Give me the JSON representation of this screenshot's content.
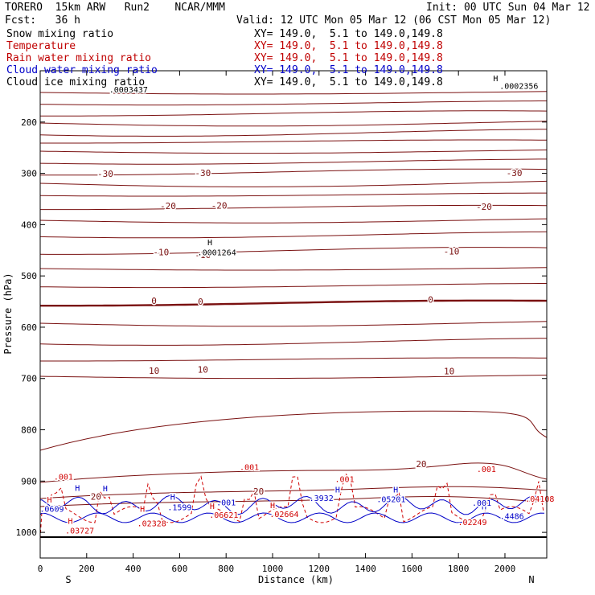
{
  "header": {
    "model": "TORERO  15km ARW   Run2    NCAR/MMM",
    "init": "Init: 00 UTC Sun 04 Mar 12",
    "fcst": "Fcst:   36 h",
    "valid": "Valid: 12 UTC Mon 05 Mar 12 (06 CST Mon 05 Mar 12)"
  },
  "legend": [
    {
      "label": "Snow mixing ratio",
      "xy": "XY= 149.0,  5.1 to 149.0,149.8",
      "color": "#000000"
    },
    {
      "label": "Temperature",
      "xy": "XY= 149.0,  5.1 to 149.0,149.8",
      "color": "#c00000"
    },
    {
      "label": "Rain water mixing ratio",
      "xy": "XY= 149.0,  5.1 to 149.0,149.8",
      "color": "#c00000"
    },
    {
      "label": "Cloud water mixing ratio",
      "xy": "XY= 149.0,  5.1 to 149.0,149.8",
      "color": "#0000c8"
    },
    {
      "label": "Cloud ice mixing ratio",
      "xy": "XY= 149.0,  5.1 to 149.0,149.8",
      "color": "#000000"
    }
  ],
  "chart_data": {
    "type": "contour-cross-section",
    "xlabel": "Distance (km)",
    "ylabel": "Pressure (hPa)",
    "xlim": [
      0,
      2180
    ],
    "ylim": [
      1050,
      100
    ],
    "x_ticks": [
      0,
      200,
      400,
      600,
      800,
      1000,
      1200,
      1400,
      1600,
      1800,
      2000
    ],
    "y_ticks": [
      200,
      300,
      400,
      500,
      600,
      700,
      800,
      900,
      1000
    ],
    "endpoint_left": "S",
    "endpoint_right": "N",
    "temperature_labels": [
      {
        "text": "-30",
        "x": 280,
        "p": 307
      },
      {
        "text": "-30",
        "x": 700,
        "p": 305
      },
      {
        "text": "-30",
        "x": 2040,
        "p": 305
      },
      {
        "text": "-20",
        "x": 550,
        "p": 370
      },
      {
        "text": "-20",
        "x": 770,
        "p": 369
      },
      {
        "text": "-20",
        "x": 1910,
        "p": 371
      },
      {
        "text": "-10",
        "x": 520,
        "p": 460
      },
      {
        "text": "-10",
        "x": 700,
        "p": 465
      },
      {
        "text": "-10",
        "x": 1770,
        "p": 458
      },
      {
        "text": "0",
        "x": 490,
        "p": 555
      },
      {
        "text": "0",
        "x": 690,
        "p": 556
      },
      {
        "text": "0",
        "x": 1680,
        "p": 552
      },
      {
        "text": "10",
        "x": 490,
        "p": 691
      },
      {
        "text": "10",
        "x": 700,
        "p": 689
      },
      {
        "text": "10",
        "x": 1760,
        "p": 692
      },
      {
        "text": "20",
        "x": 1640,
        "p": 873
      },
      {
        "text": "20",
        "x": 940,
        "p": 926
      },
      {
        "text": "20",
        "x": 240,
        "p": 936
      }
    ],
    "rain_labels": [
      {
        "text": ".001",
        "x": 100,
        "p": 897
      },
      {
        "text": ".001",
        "x": 900,
        "p": 878
      },
      {
        "text": ".001",
        "x": 1310,
        "p": 902
      },
      {
        "text": ".001",
        "x": 1920,
        "p": 882
      },
      {
        "text": "H",
        "x": 40,
        "p": 942
      },
      {
        "text": "H",
        "x": 440,
        "p": 960
      },
      {
        "text": "H",
        "x": 740,
        "p": 954
      },
      {
        "text": "H",
        "x": 1000,
        "p": 953
      },
      {
        "text": "H",
        "x": 130,
        "p": 983
      },
      {
        "text": ".03727",
        "x": 170,
        "p": 1002
      },
      {
        "text": ".02328",
        "x": 480,
        "p": 988
      },
      {
        "text": ".06621",
        "x": 790,
        "p": 972
      },
      {
        "text": ".02664",
        "x": 1050,
        "p": 970
      },
      {
        "text": ".02249",
        "x": 1860,
        "p": 986
      },
      {
        "text": ".04108",
        "x": 2150,
        "p": 940
      }
    ],
    "cloud_labels": [
      {
        "text": "H",
        "x": 160,
        "p": 919
      },
      {
        "text": "H",
        "x": 280,
        "p": 920
      },
      {
        "text": "H",
        "x": 570,
        "p": 936
      },
      {
        "text": "H",
        "x": 1280,
        "p": 922
      },
      {
        "text": "H",
        "x": 1530,
        "p": 922
      },
      {
        "text": "H",
        "x": 1910,
        "p": 955
      },
      {
        "text": ".0609",
        "x": 50,
        "p": 960
      },
      {
        "text": ".001",
        "x": 800,
        "p": 947
      },
      {
        "text": ".1599",
        "x": 600,
        "p": 957
      },
      {
        "text": ".3932",
        "x": 1210,
        "p": 939
      },
      {
        "text": ".05201",
        "x": 1510,
        "p": 941
      },
      {
        "text": ".001",
        "x": 1900,
        "p": 948
      },
      {
        "text": ".4486",
        "x": 2030,
        "p": 974
      }
    ],
    "ice_labels": [
      {
        "text": ".0003437",
        "x": 380,
        "p": 142
      },
      {
        "text": ".0002356",
        "x": 2060,
        "p": 135
      },
      {
        "text": "H",
        "x": 1960,
        "p": 120
      },
      {
        "text": "H",
        "x": 730,
        "p": 440
      },
      {
        "text": ".0001264",
        "x": 760,
        "p": 460
      }
    ]
  }
}
